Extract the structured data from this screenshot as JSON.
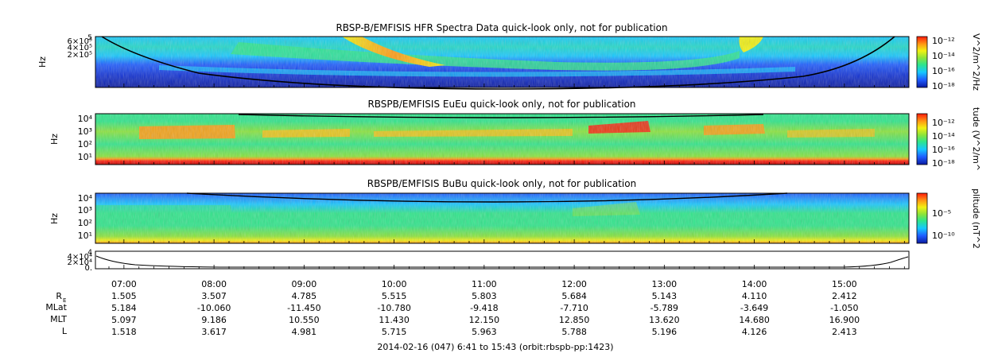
{
  "chart_data": {
    "type": "heatmap",
    "panels": [
      {
        "title": "RBSP-B/EMFISIS  HFR Spectra Data quick-look only, not for publication",
        "ylabel": "Hz",
        "ylim": [
          100000,
          1000000
        ],
        "yscale": "log",
        "yticks": [
          "6×10⁵",
          "4×10⁵",
          "2×10⁵"
        ],
        "top_tick": "5",
        "colorbar": {
          "label": "V^2/m^2/Hz",
          "range": [
            1e-18,
            1e-12
          ],
          "ticks": [
            "10⁻¹²",
            "10⁻¹⁴",
            "10⁻¹⁶",
            "10⁻¹⁸"
          ]
        }
      },
      {
        "title": "RBSPB/EMFISIS  EuEu quick-look only, not for publication",
        "ylabel": "Hz",
        "ylim": [
          2,
          12000
        ],
        "yscale": "log",
        "yticks": [
          "10⁴",
          "10³",
          "10²",
          "10¹"
        ],
        "colorbar": {
          "label": "tude (V^2/m^",
          "range": [
            1e-18,
            1e-12
          ],
          "ticks": [
            "10⁻¹²",
            "10⁻¹⁴",
            "10⁻¹⁶",
            "10⁻¹⁸"
          ]
        }
      },
      {
        "title": "RBSPB/EMFISIS  BuBu quick-look only, not for publication",
        "ylabel": "Hz",
        "ylim": [
          2,
          12000
        ],
        "yscale": "log",
        "yticks": [
          "10⁴",
          "10³",
          "10²",
          "10¹"
        ],
        "colorbar": {
          "label": "plitude (nT^2",
          "range": [
            1e-10,
            0.001
          ],
          "ticks": [
            "10⁻⁵",
            "10⁻¹⁰"
          ]
        }
      },
      {
        "type": "line",
        "yticks": [
          "4×10⁴",
          "2×10⁴",
          "0."
        ],
        "ylim": [
          0,
          40000
        ],
        "top_tick": "4"
      }
    ],
    "x_time_labels": [
      "07:00",
      "08:00",
      "09:00",
      "10:00",
      "11:00",
      "12:00",
      "13:00",
      "14:00",
      "15:00"
    ],
    "x_range_hours": [
      6.6833,
      15.7167
    ],
    "ephemeris": [
      {
        "label": "R",
        "subscript": "E",
        "values": [
          "1.505",
          "3.507",
          "4.785",
          "5.515",
          "5.803",
          "5.684",
          "5.143",
          "4.110",
          "2.412"
        ]
      },
      {
        "label": "MLat",
        "values": [
          "5.184",
          "-10.060",
          "-11.450",
          "-10.780",
          "-9.418",
          "-7.710",
          "-5.789",
          "-3.649",
          "-1.050"
        ]
      },
      {
        "label": "MLT",
        "values": [
          "5.097",
          "9.186",
          "10.550",
          "11.430",
          "12.150",
          "12.850",
          "13.620",
          "14.680",
          "16.900"
        ]
      },
      {
        "label": "L",
        "values": [
          "1.518",
          "3.617",
          "4.981",
          "5.715",
          "5.963",
          "5.788",
          "5.196",
          "4.126",
          "2.413"
        ]
      }
    ],
    "footer": "2014-02-16 (047) 6:41 to 15:43 (orbit:rbspb-pp:1423)"
  },
  "colors": {
    "spectrum": [
      "#0a1aa0",
      "#1e5cff",
      "#16c8ff",
      "#2ee58a",
      "#8be43a",
      "#f1f112",
      "#ff9a14",
      "#ff1a0a",
      "#c00000"
    ],
    "axis": "#000000"
  }
}
